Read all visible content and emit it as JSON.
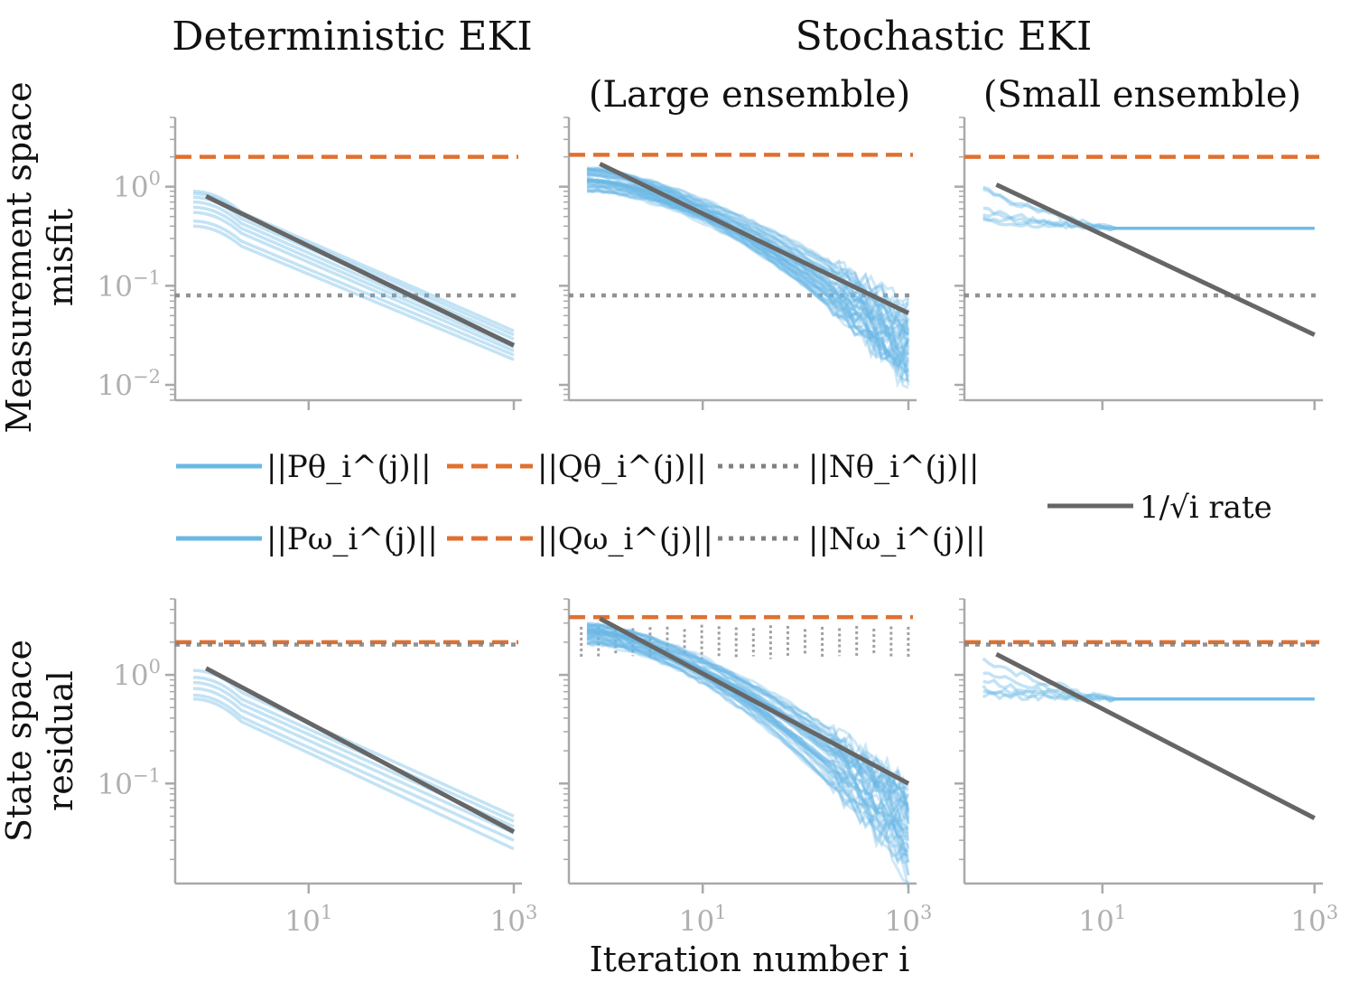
{
  "chart_data": {
    "type": "line",
    "titles": {
      "col1": "Deterministic EKI",
      "col23": "Stochastic EKI",
      "col2_sub": "(Large ensemble)",
      "col3_sub": "(Small ensemble)"
    },
    "xlabel": "Iteration number i",
    "xscale": "log",
    "xlim": [
      0.5,
      1200
    ],
    "x_ticks": [
      "10^1",
      "10^3"
    ],
    "rows": [
      {
        "ylabel": [
          "Measurement space",
          "misfit"
        ],
        "yscale": "log",
        "ylim": [
          0.007,
          5
        ],
        "y_ticks": [
          "10^0",
          "10^-1",
          "10^-2"
        ],
        "legend": {
          "blue": "||Pθ_i^(j)||",
          "orange": "||Qθ_i^(j)||",
          "gray": "||Nθ_i^(j)||"
        },
        "panels": [
          {
            "name": "deterministic",
            "rate_line": {
              "x": [
                1,
                1000
              ],
              "y": [
                0.8,
                0.025
              ]
            },
            "orange_level": 2.0,
            "gray_level": 0.08,
            "series_start": [
              0.9,
              0.85,
              0.78,
              0.7,
              0.62,
              0.55,
              0.45,
              0.4
            ],
            "series_end": [
              0.035,
              0.032,
              0.029,
              0.026,
              0.024,
              0.022,
              0.02,
              0.018
            ],
            "style": "deterministic"
          },
          {
            "name": "stochastic-large",
            "rate_line": {
              "x": [
                1,
                1000
              ],
              "y": [
                1.7,
                0.053
              ]
            },
            "orange_level": 2.1,
            "gray_level": 0.08,
            "ensemble_start_range": [
              0.9,
              1.6
            ],
            "ensemble_end_range": [
              0.01,
              0.06
            ],
            "style": "stochastic"
          },
          {
            "name": "stochastic-small",
            "rate_line": {
              "x": [
                1,
                1000
              ],
              "y": [
                1.05,
                0.032
              ]
            },
            "orange_level": 2.0,
            "gray_level": 0.08,
            "plateau": 0.38,
            "series_start": [
              1.0,
              0.95,
              0.6,
              0.55,
              0.5,
              0.45
            ],
            "style": "plateau"
          }
        ]
      },
      {
        "ylabel": [
          "State space",
          "residual"
        ],
        "yscale": "log",
        "ylim": [
          0.012,
          5
        ],
        "y_ticks": [
          "10^0",
          "10^-1"
        ],
        "legend": {
          "blue": "||Pω_i^(j)||",
          "orange": "||Qω_i^(j)||",
          "gray": "||Nω_i^(j)||"
        },
        "panels": [
          {
            "name": "deterministic",
            "rate_line": {
              "x": [
                1,
                1000
              ],
              "y": [
                1.15,
                0.036
              ]
            },
            "orange_level": 2.0,
            "gray_level": 1.9,
            "series_start": [
              1.1,
              0.95,
              0.85,
              0.75,
              0.65,
              0.6
            ],
            "series_end": [
              0.05,
              0.045,
              0.04,
              0.035,
              0.03,
              0.025
            ],
            "style": "deterministic"
          },
          {
            "name": "stochastic-large",
            "rate_line": {
              "x": [
                1,
                1000
              ],
              "y": [
                3.3,
                0.1
              ]
            },
            "orange_level": 3.4,
            "gray_level": 2.0,
            "gray_style": "fluctuating",
            "ensemble_start_range": [
              1.9,
              3.0
            ],
            "ensemble_end_range": [
              0.015,
              0.1
            ],
            "style": "stochastic"
          },
          {
            "name": "stochastic-small",
            "rate_line": {
              "x": [
                1,
                1000
              ],
              "y": [
                1.55,
                0.048
              ]
            },
            "orange_level": 2.0,
            "gray_level": 1.9,
            "plateau": 0.6,
            "series_start": [
              1.5,
              1.1,
              0.9,
              0.75,
              0.7,
              0.65
            ],
            "style": "plateau"
          }
        ]
      }
    ],
    "rate_legend": "1/√i rate",
    "colors": {
      "blue": "#6ab8e6",
      "orange": "#e07030",
      "gray": "#808080",
      "rate": "#666666",
      "axis": "#a9a9a9"
    }
  }
}
